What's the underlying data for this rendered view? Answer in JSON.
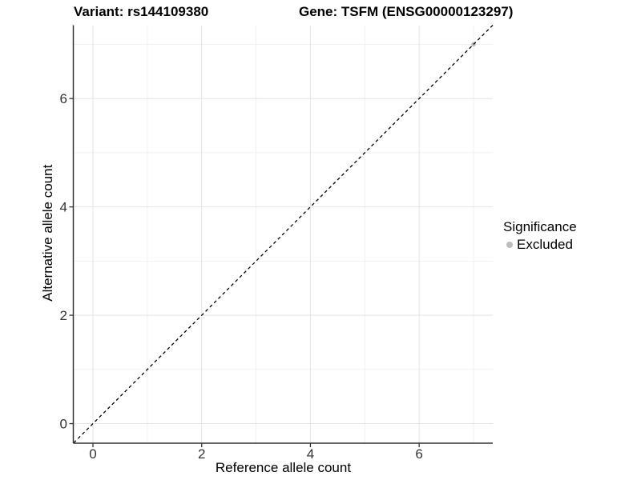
{
  "chart_data": {
    "type": "scatter",
    "title_left": "Variant: rs144109380",
    "title_right": "Gene: TSFM (ENSG00000123297)",
    "xlabel": "Reference allele count",
    "ylabel": "Alternative allele count",
    "xlim": [
      -0.354,
      7.354
    ],
    "ylim": [
      -0.354,
      7.354
    ],
    "x_ticks_major": [
      0,
      2,
      4,
      6
    ],
    "y_ticks_major": [
      0,
      2,
      4,
      6
    ],
    "x_gridlines_minor": [
      1,
      3,
      5,
      7
    ],
    "y_gridlines_minor": [
      1,
      3,
      5,
      7
    ],
    "grid": true,
    "series": [
      {
        "name": "Excluded",
        "marker": "circle",
        "color": "#bdbdbd",
        "points": [
          {
            "x": 7,
            "y": 7
          }
        ]
      }
    ],
    "reference_line": {
      "kind": "identity",
      "slope": 1,
      "intercept": 0,
      "style": "dashed",
      "color": "#000000"
    },
    "legend": {
      "title": "Significance",
      "position": "right",
      "entries": [
        {
          "label": "Excluded",
          "color": "#bdbdbd",
          "marker": "circle"
        }
      ]
    }
  },
  "colors": {
    "background": "#ffffff",
    "excluded_gray": "#bdbdbd",
    "grid_major": "#e4e4e4",
    "grid_minor": "#f1f1f1",
    "axis_line": "#333333",
    "tick_mark": "#333333",
    "tick_label": "#333333",
    "title_text": "#000000"
  }
}
